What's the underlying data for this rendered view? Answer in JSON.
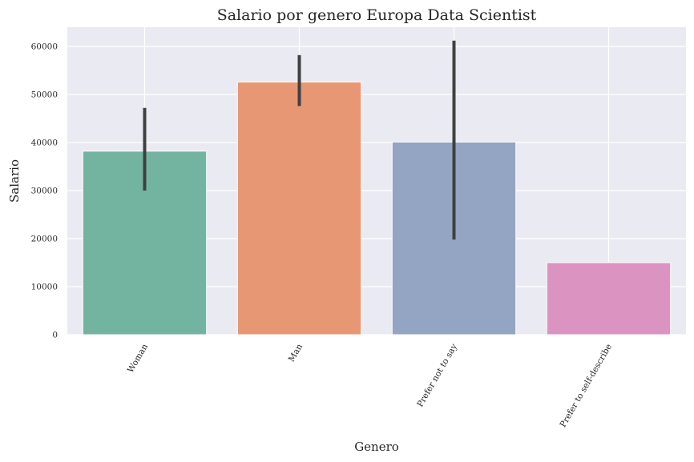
{
  "chart_data": {
    "type": "bar",
    "title": "Salario por genero Europa Data Scientist",
    "xlabel": "Genero",
    "ylabel": "Salario",
    "categories": [
      "Woman",
      "Man",
      "Prefer not to say",
      "Prefer to self-describe"
    ],
    "values": [
      38200,
      52600,
      40100,
      15000
    ],
    "error_low": [
      30000,
      47600,
      19800,
      null
    ],
    "error_high": [
      47200,
      58200,
      61200,
      null
    ],
    "colors": [
      "#73b4a0",
      "#e89775",
      "#94a4c3",
      "#db94c1"
    ],
    "error_color": "#404040",
    "ylim": [
      0,
      64000
    ],
    "yticks": [
      0,
      10000,
      20000,
      30000,
      40000,
      50000,
      60000
    ],
    "grid": true,
    "background": "#eaeaf2",
    "legend": "none"
  }
}
